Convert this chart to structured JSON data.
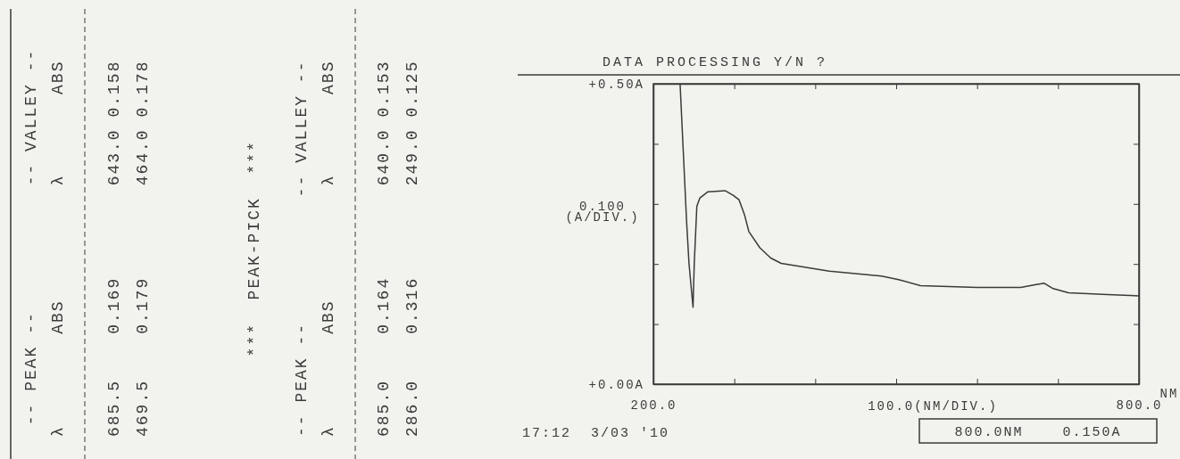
{
  "chart_data": {
    "type": "line",
    "title": "DATA PROCESSING Y/N ?",
    "xlabel": "100.0(NM/DIV.)",
    "ylabel": "0.100 (A/DIV.)",
    "x": [
      233,
      241,
      244,
      249,
      250.5,
      253.7,
      257.5,
      267,
      288.6,
      299,
      305.8,
      312.8,
      318,
      331.6,
      345,
      358,
      417.5,
      482,
      503,
      530,
      600,
      654,
      670,
      683,
      694,
      713,
      761,
      800
    ],
    "series": [
      {
        "color": "#3a3a3a",
        "values": [
          0.5,
          0.272,
          0.201,
          0.128,
          0.2,
          0.296,
          0.31,
          0.32,
          0.322,
          0.314,
          0.307,
          0.281,
          0.254,
          0.227,
          0.21,
          0.201,
          0.188,
          0.18,
          0.174,
          0.164,
          0.161,
          0.161,
          0.165,
          0.168,
          0.159,
          0.152,
          0.149,
          0.147
        ]
      }
    ],
    "xlim": [
      200,
      800
    ],
    "ylim": [
      0,
      0.5
    ],
    "xticks": [
      {
        "value": 200,
        "label": "200.0"
      },
      {
        "value": 300,
        "label": null
      },
      {
        "value": 400,
        "label": null
      },
      {
        "value": 500,
        "label": null
      },
      {
        "value": 600,
        "label": null
      },
      {
        "value": 700,
        "label": null
      },
      {
        "value": 800,
        "label": "800.0"
      }
    ],
    "yticks": [
      {
        "value": 0,
        "label": "+0.00A"
      },
      {
        "value": 0.1,
        "label": null
      },
      {
        "value": 0.2,
        "label": null
      },
      {
        "value": 0.3,
        "label": null
      },
      {
        "value": 0.4,
        "label": null
      },
      {
        "value": 0.5,
        "label": "+0.50A"
      }
    ],
    "grid": false,
    "marker": "none",
    "line_style": "solid",
    "annotations": [
      "-- PEAK --           -- VALLEY --",
      "λ        ABS          λ       ABS",
      "685.5    0.169        643.0 0.158",
      "469.5    0.179        464.0 0.178",
      "***  PEAK-PICK  ***",
      "-- PEAK --           -- VALLEY --",
      "λ        ABS          λ       ABS",
      "685.0    0.164        640.0 0.153",
      "286.0    0.316        249.0 0.125",
      "NM",
      "17:12  3/03 '10",
      "800.0NM    0.150A"
    ]
  }
}
